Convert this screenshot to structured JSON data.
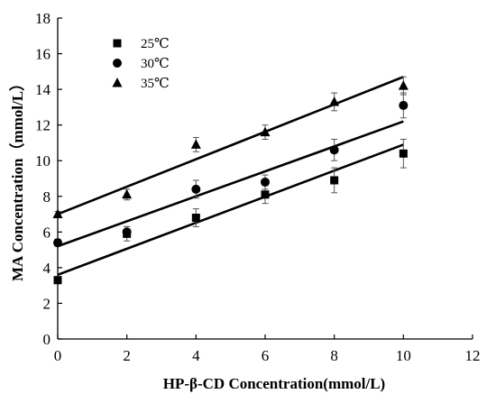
{
  "chart_data": {
    "type": "scatter",
    "xlabel": "HP-β-CD Concentration(mmol/L)",
    "ylabel": "MA Concentration（mmol/L）",
    "xlim": [
      0,
      12
    ],
    "ylim": [
      0,
      18
    ],
    "xticks": [
      0,
      2,
      4,
      6,
      8,
      10,
      12
    ],
    "yticks": [
      0,
      2,
      4,
      6,
      8,
      10,
      12,
      14,
      16,
      18
    ],
    "grid": false,
    "legend_position": "top-left",
    "series": [
      {
        "name": "25℃",
        "marker": "square",
        "x": [
          0,
          2,
          4,
          6,
          8,
          10
        ],
        "y": [
          3.3,
          5.9,
          6.8,
          8.1,
          8.9,
          10.4
        ],
        "error": [
          0.2,
          0.4,
          0.5,
          0.5,
          0.7,
          0.8
        ],
        "fit": {
          "intercept": 3.6,
          "slope": 0.73
        }
      },
      {
        "name": "30℃",
        "marker": "circle",
        "x": [
          0,
          2,
          4,
          6,
          8,
          10
        ],
        "y": [
          5.4,
          6.0,
          8.4,
          8.8,
          10.6,
          13.1
        ],
        "error": [
          0.2,
          0.3,
          0.5,
          0.4,
          0.6,
          0.7
        ],
        "fit": {
          "intercept": 5.2,
          "slope": 0.7
        }
      },
      {
        "name": "35℃",
        "marker": "triangle",
        "x": [
          0,
          2,
          4,
          6,
          8,
          10
        ],
        "y": [
          7.0,
          8.1,
          10.9,
          11.6,
          13.3,
          14.2
        ],
        "error": [
          0.15,
          0.3,
          0.4,
          0.4,
          0.5,
          0.5
        ],
        "fit": {
          "intercept": 7.0,
          "slope": 0.77
        }
      }
    ]
  }
}
